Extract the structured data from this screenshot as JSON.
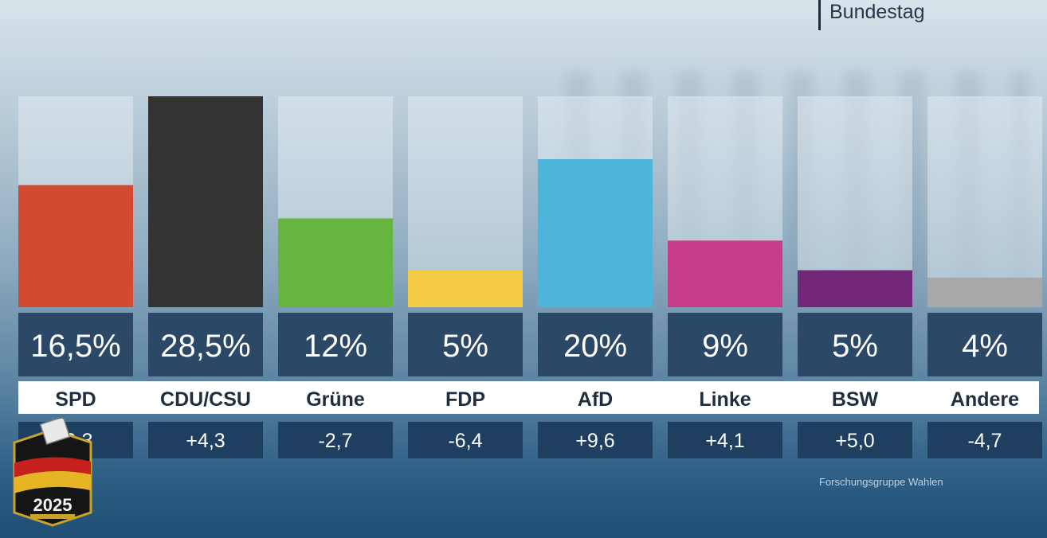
{
  "header": {
    "label": "Bundestag"
  },
  "source": "Forschungsgruppe Wahlen",
  "logo": {
    "year": "2025"
  },
  "chart_data": {
    "type": "bar",
    "categories": [
      "SPD",
      "CDU/CSU",
      "Grüne",
      "FDP",
      "AfD",
      "Linke",
      "BSW",
      "Andere"
    ],
    "values": [
      16.5,
      28.5,
      12,
      5,
      20,
      9,
      5,
      4
    ],
    "value_labels": [
      "16,5%",
      "28,5%",
      "12%",
      "5%",
      "20%",
      "9%",
      "5%",
      "4%"
    ],
    "change_labels": [
      "-9,3",
      "+4,3",
      "-2,7",
      "-6,4",
      "+9,6",
      "+4,1",
      "+5,0",
      "-4,7"
    ],
    "colors": [
      "#d24a31",
      "#333333",
      "#65b540",
      "#f5cc45",
      "#4db5d9",
      "#c63d8a",
      "#732778",
      "#a8a8a8"
    ],
    "ylim": [
      0,
      28.5
    ]
  }
}
